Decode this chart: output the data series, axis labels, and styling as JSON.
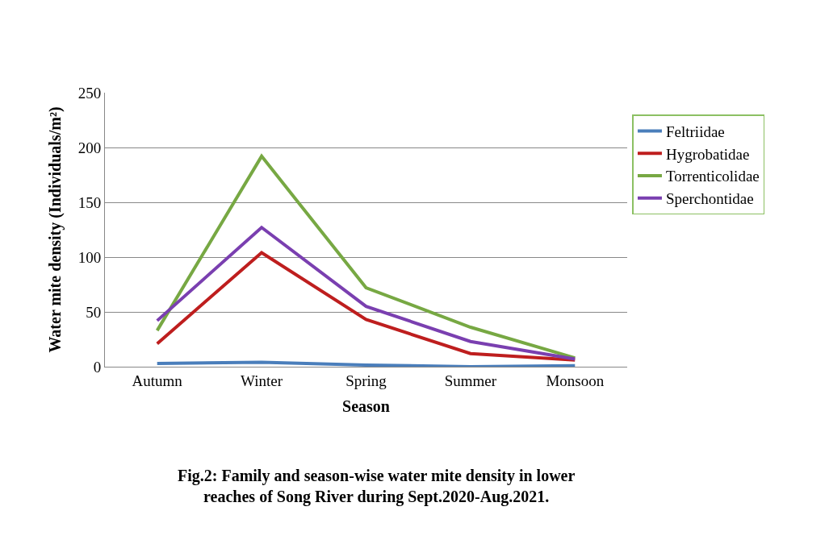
{
  "chart_data": {
    "type": "line",
    "xlabel": "Season",
    "ylabel": "Water mite density (Individuals/m²)",
    "categories": [
      "Autumn",
      "Winter",
      "Spring",
      "Summer",
      "Monsoon"
    ],
    "series": [
      {
        "name": "Feltriidae",
        "color": "#4a7ebb",
        "values": [
          3,
          4,
          1.5,
          0,
          1
        ]
      },
      {
        "name": "Hygrobatidae",
        "color": "#be1e1e",
        "values": [
          21,
          104,
          43,
          12,
          6
        ]
      },
      {
        "name": "Torrenticolidae",
        "color": "#77a843",
        "values": [
          33,
          192,
          72,
          36,
          8
        ]
      },
      {
        "name": "Sperchontidae",
        "color": "#7a3fb0",
        "values": [
          42,
          127,
          55,
          23,
          7
        ]
      }
    ],
    "ylim": [
      0,
      250
    ],
    "yticks": [
      0,
      50,
      100,
      150,
      200,
      250
    ],
    "grid": "y",
    "legend": "right",
    "marker": "none",
    "line_style": "solid",
    "annotations": [
      "Fig.2: Family and season-wise water mite density in lower reaches of Song River during Sept.2020-Aug.2021."
    ]
  }
}
